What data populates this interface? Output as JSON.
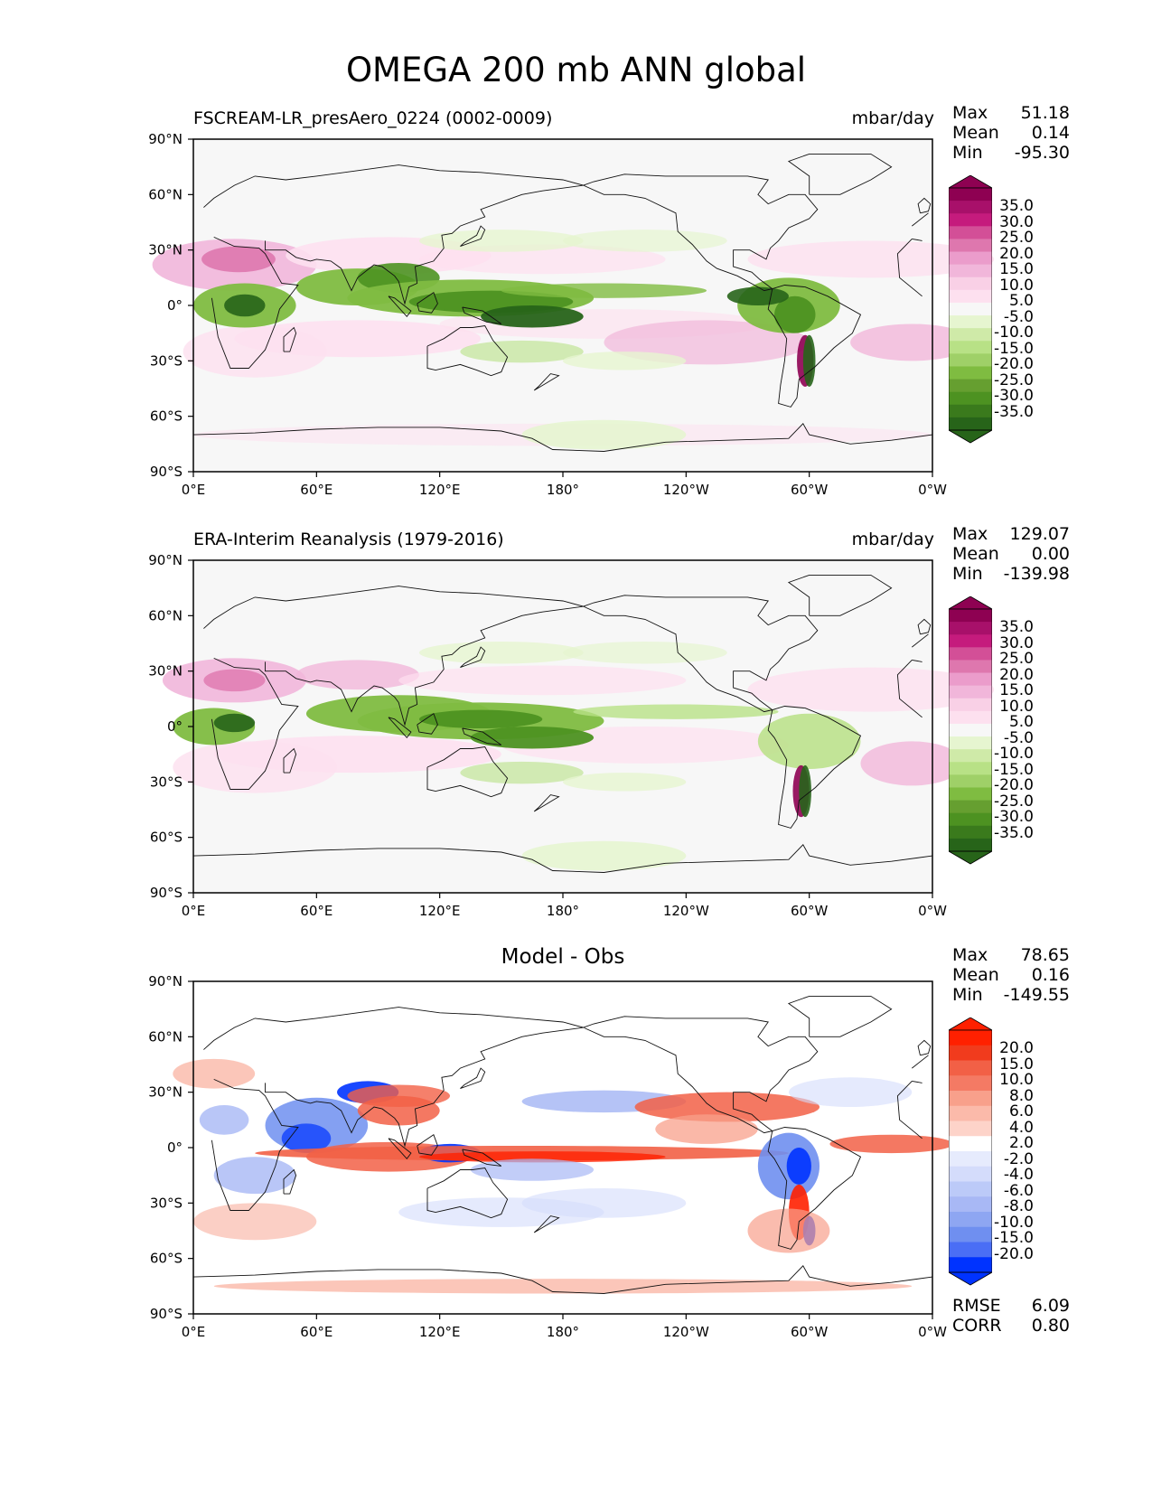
{
  "title": "OMEGA 200 mb ANN global",
  "panels": [
    {
      "name": "FSCREAM-LR_presAero_0224 (0002-0009)",
      "units": "mbar/day",
      "stats": {
        "max_label": "Max",
        "max": "51.18",
        "mean_label": "Mean",
        "mean": "0.14",
        "min_label": "Min",
        "min": "-95.30"
      },
      "colorbar": [
        "35.0",
        "30.0",
        "25.0",
        "20.0",
        "15.0",
        "10.0",
        "5.0",
        "-5.0",
        "-10.0",
        "-15.0",
        "-20.0",
        "-25.0",
        "-30.0",
        "-35.0"
      ]
    },
    {
      "name": "ERA-Interim Reanalysis (1979-2016)",
      "units": "mbar/day",
      "stats": {
        "max_label": "Max",
        "max": "129.07",
        "mean_label": "Mean",
        "mean": "0.00",
        "min_label": "Min",
        "min": "-139.98"
      },
      "colorbar": [
        "35.0",
        "30.0",
        "25.0",
        "20.0",
        "15.0",
        "10.0",
        "5.0",
        "-5.0",
        "-10.0",
        "-15.0",
        "-20.0",
        "-25.0",
        "-30.0",
        "-35.0"
      ]
    },
    {
      "name": "Model - Obs",
      "units": "",
      "stats": {
        "max_label": "Max",
        "max": "78.65",
        "mean_label": "Mean",
        "mean": "0.16",
        "min_label": "Min",
        "min": "-149.55"
      },
      "colorbar": [
        "20.0",
        "15.0",
        "10.0",
        "8.0",
        "6.0",
        "4.0",
        "2.0",
        "-2.0",
        "-4.0",
        "-6.0",
        "-8.0",
        "-10.0",
        "-15.0",
        "-20.0"
      ],
      "metrics": {
        "rmse_label": "RMSE",
        "rmse": "6.09",
        "corr_label": "CORR",
        "corr": "0.80"
      }
    }
  ],
  "lat_ticks": [
    "90°N",
    "60°N",
    "30°N",
    "0°",
    "30°S",
    "60°S",
    "90°S"
  ],
  "lon_ticks": [
    "0°E",
    "60°E",
    "120°E",
    "180°",
    "120°W",
    "60°W",
    "0°W"
  ],
  "colors": {
    "field_cmap": [
      "#8e0152",
      "#c51b7d",
      "#de77ae",
      "#f1b6da",
      "#fde0ef",
      "#f7f7f7",
      "#e6f5d0",
      "#b8e186",
      "#7fbc41",
      "#4d9221",
      "#276419"
    ],
    "diff_cmap": [
      "#ff2000",
      "#f26046",
      "#f8a08b",
      "#fdd3c9",
      "#ffffff",
      "#d4dcfb",
      "#a8b8f5",
      "#6f8ff0",
      "#0033ff"
    ]
  }
}
